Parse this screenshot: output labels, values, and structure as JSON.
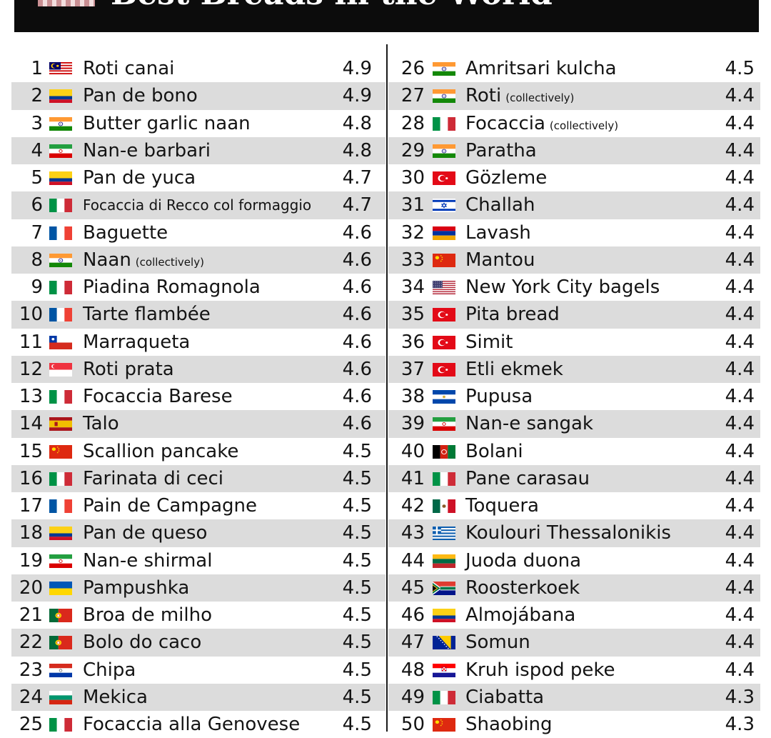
{
  "header": {
    "title": "Best Breads in the World"
  },
  "rows": [
    {
      "rank": "1",
      "flag": "malaysia",
      "name": "Roti canai",
      "note": "",
      "score": "4.9"
    },
    {
      "rank": "2",
      "flag": "colombia",
      "name": "Pan de bono",
      "note": "",
      "score": "4.9"
    },
    {
      "rank": "3",
      "flag": "india",
      "name": "Butter garlic naan",
      "note": "",
      "score": "4.8"
    },
    {
      "rank": "4",
      "flag": "iran",
      "name": "Nan-e barbari",
      "note": "",
      "score": "4.8"
    },
    {
      "rank": "5",
      "flag": "colombia",
      "name": "Pan de yuca",
      "note": "",
      "score": "4.7"
    },
    {
      "rank": "6",
      "flag": "italy",
      "name": "Focaccia di Recco col formaggio",
      "note": "",
      "score": "4.7"
    },
    {
      "rank": "7",
      "flag": "france",
      "name": "Baguette",
      "note": "",
      "score": "4.6"
    },
    {
      "rank": "8",
      "flag": "india",
      "name": "Naan",
      "note": "(collectively)",
      "score": "4.6"
    },
    {
      "rank": "9",
      "flag": "italy",
      "name": "Piadina Romagnola",
      "note": "",
      "score": "4.6"
    },
    {
      "rank": "10",
      "flag": "france",
      "name": "Tarte flambée",
      "note": "",
      "score": "4.6"
    },
    {
      "rank": "11",
      "flag": "chile",
      "name": "Marraqueta",
      "note": "",
      "score": "4.6"
    },
    {
      "rank": "12",
      "flag": "singapore",
      "name": "Roti prata",
      "note": "",
      "score": "4.6"
    },
    {
      "rank": "13",
      "flag": "italy",
      "name": "Focaccia Barese",
      "note": "",
      "score": "4.6"
    },
    {
      "rank": "14",
      "flag": "spain",
      "name": "Talo",
      "note": "",
      "score": "4.6"
    },
    {
      "rank": "15",
      "flag": "china",
      "name": "Scallion pancake",
      "note": "",
      "score": "4.5"
    },
    {
      "rank": "16",
      "flag": "italy",
      "name": "Farinata di ceci",
      "note": "",
      "score": "4.5"
    },
    {
      "rank": "17",
      "flag": "france",
      "name": "Pain de Campagne",
      "note": "",
      "score": "4.5"
    },
    {
      "rank": "18",
      "flag": "colombia",
      "name": "Pan de queso",
      "note": "",
      "score": "4.5"
    },
    {
      "rank": "19",
      "flag": "iran",
      "name": "Nan-e shirmal",
      "note": "",
      "score": "4.5"
    },
    {
      "rank": "20",
      "flag": "ukraine",
      "name": "Pampushka",
      "note": "",
      "score": "4.5"
    },
    {
      "rank": "21",
      "flag": "portugal",
      "name": "Broa de milho",
      "note": "",
      "score": "4.5"
    },
    {
      "rank": "22",
      "flag": "portugal",
      "name": "Bolo do caco",
      "note": "",
      "score": "4.5"
    },
    {
      "rank": "23",
      "flag": "paraguay",
      "name": "Chipa",
      "note": "",
      "score": "4.5"
    },
    {
      "rank": "24",
      "flag": "bulgaria",
      "name": "Mekica",
      "note": "",
      "score": "4.5"
    },
    {
      "rank": "25",
      "flag": "italy",
      "name": "Focaccia alla Genovese",
      "note": "",
      "score": "4.5"
    },
    {
      "rank": "26",
      "flag": "india",
      "name": "Amritsari kulcha",
      "note": "",
      "score": "4.5"
    },
    {
      "rank": "27",
      "flag": "india",
      "name": "Roti",
      "note": "(collectively)",
      "score": "4.4"
    },
    {
      "rank": "28",
      "flag": "italy",
      "name": "Focaccia",
      "note": "(collectively)",
      "score": "4.4"
    },
    {
      "rank": "29",
      "flag": "india",
      "name": "Paratha",
      "note": "",
      "score": "4.4"
    },
    {
      "rank": "30",
      "flag": "turkey",
      "name": "Gözleme",
      "note": "",
      "score": "4.4"
    },
    {
      "rank": "31",
      "flag": "israel",
      "name": "Challah",
      "note": "",
      "score": "4.4"
    },
    {
      "rank": "32",
      "flag": "armenia",
      "name": "Lavash",
      "note": "",
      "score": "4.4"
    },
    {
      "rank": "33",
      "flag": "china",
      "name": "Mantou",
      "note": "",
      "score": "4.4"
    },
    {
      "rank": "34",
      "flag": "usa",
      "name": "New York City bagels",
      "note": "",
      "score": "4.4"
    },
    {
      "rank": "35",
      "flag": "turkey",
      "name": "Pita bread",
      "note": "",
      "score": "4.4"
    },
    {
      "rank": "36",
      "flag": "turkey",
      "name": "Simit",
      "note": "",
      "score": "4.4"
    },
    {
      "rank": "37",
      "flag": "turkey",
      "name": "Etli ekmek",
      "note": "",
      "score": "4.4"
    },
    {
      "rank": "38",
      "flag": "el-salvador",
      "name": "Pupusa",
      "note": "",
      "score": "4.4"
    },
    {
      "rank": "39",
      "flag": "iran",
      "name": "Nan-e sangak",
      "note": "",
      "score": "4.4"
    },
    {
      "rank": "40",
      "flag": "afghanistan",
      "name": "Bolani",
      "note": "",
      "score": "4.4"
    },
    {
      "rank": "41",
      "flag": "italy",
      "name": "Pane carasau",
      "note": "",
      "score": "4.4"
    },
    {
      "rank": "42",
      "flag": "mexico",
      "name": "Toquera",
      "note": "",
      "score": "4.4"
    },
    {
      "rank": "43",
      "flag": "greece",
      "name": "Koulouri Thessalonikis",
      "note": "",
      "score": "4.4"
    },
    {
      "rank": "44",
      "flag": "lithuania",
      "name": "Juoda duona",
      "note": "",
      "score": "4.4"
    },
    {
      "rank": "45",
      "flag": "south-africa",
      "name": "Roosterkoek",
      "note": "",
      "score": "4.4"
    },
    {
      "rank": "46",
      "flag": "colombia",
      "name": "Almojábana",
      "note": "",
      "score": "4.4"
    },
    {
      "rank": "47",
      "flag": "bosnia",
      "name": "Somun",
      "note": "",
      "score": "4.4"
    },
    {
      "rank": "48",
      "flag": "croatia",
      "name": "Kruh ispod peke",
      "note": "",
      "score": "4.4"
    },
    {
      "rank": "49",
      "flag": "italy",
      "name": "Ciabatta",
      "note": "",
      "score": "4.3"
    },
    {
      "rank": "50",
      "flag": "china",
      "name": "Shaobing",
      "note": "",
      "score": "4.3"
    }
  ]
}
